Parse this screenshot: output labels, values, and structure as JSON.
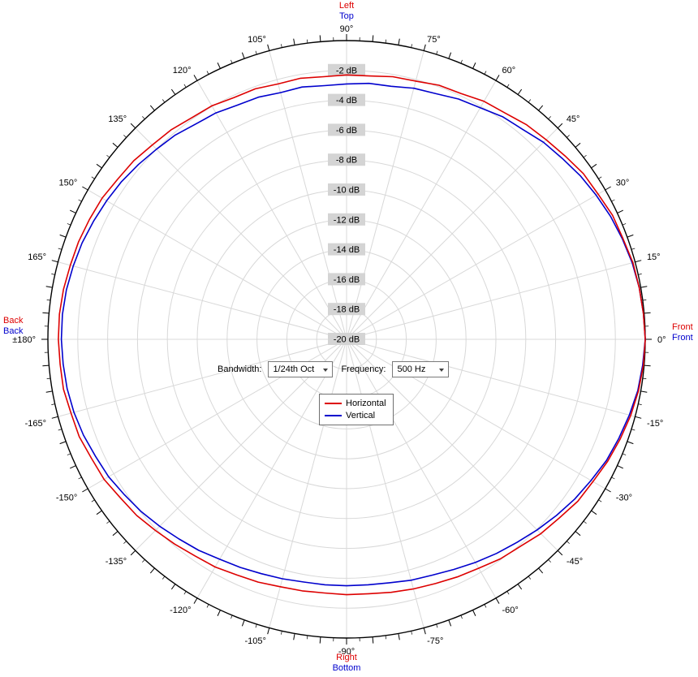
{
  "chart_data": {
    "type": "polar-line",
    "title": "",
    "angle_unit": "deg",
    "tick_minor_deg": 2.5,
    "angles_deg": [
      0,
      5,
      10,
      15,
      20,
      25,
      30,
      35,
      40,
      45,
      50,
      55,
      60,
      65,
      70,
      75,
      80,
      85,
      90,
      95,
      100,
      105,
      110,
      115,
      120,
      125,
      130,
      135,
      140,
      145,
      150,
      155,
      160,
      165,
      170,
      175,
      180,
      185,
      190,
      195,
      200,
      205,
      210,
      215,
      220,
      225,
      230,
      235,
      240,
      245,
      250,
      255,
      260,
      265,
      270,
      275,
      280,
      285,
      290,
      295,
      300,
      305,
      310,
      315,
      320,
      325,
      330,
      335,
      340,
      345,
      350,
      355
    ],
    "series": [
      {
        "name": "Horizontal",
        "color": "#dd0000",
        "values": [
          0.0,
          -0.05,
          -0.1,
          -0.15,
          -0.3,
          -0.35,
          -0.55,
          -0.65,
          -0.9,
          -1.1,
          -1.25,
          -1.5,
          -1.6,
          -1.85,
          -1.9,
          -2.1,
          -2.15,
          -2.3,
          -2.3,
          -2.35,
          -2.25,
          -2.3,
          -2.15,
          -2.15,
          -1.95,
          -1.9,
          -1.7,
          -1.6,
          -1.4,
          -1.3,
          -1.1,
          -1.0,
          -0.9,
          -0.85,
          -0.75,
          -0.7,
          -0.7,
          -0.75,
          -0.75,
          -0.9,
          -0.95,
          -1.15,
          -1.25,
          -1.5,
          -1.65,
          -1.9,
          -2.1,
          -2.3,
          -2.4,
          -2.6,
          -2.7,
          -2.85,
          -2.9,
          -2.95,
          -2.9,
          -2.9,
          -2.8,
          -2.7,
          -2.6,
          -2.45,
          -2.3,
          -2.05,
          -1.9,
          -1.6,
          -1.4,
          -1.1,
          -0.95,
          -0.7,
          -0.5,
          -0.3,
          -0.15,
          -0.05
        ]
      },
      {
        "name": "Vertical",
        "color": "#0000cd",
        "values": [
          0.0,
          -0.05,
          -0.1,
          -0.2,
          -0.35,
          -0.5,
          -0.7,
          -0.9,
          -1.15,
          -1.35,
          -1.65,
          -1.8,
          -2.1,
          -2.25,
          -2.5,
          -2.6,
          -2.8,
          -2.8,
          -2.9,
          -2.95,
          -2.85,
          -2.9,
          -2.75,
          -2.7,
          -2.5,
          -2.4,
          -2.15,
          -2.0,
          -1.8,
          -1.6,
          -1.45,
          -1.3,
          -1.15,
          -1.05,
          -0.95,
          -0.9,
          -0.9,
          -0.95,
          -1.0,
          -1.1,
          -1.25,
          -1.45,
          -1.6,
          -1.85,
          -2.05,
          -2.3,
          -2.55,
          -2.75,
          -3.0,
          -3.15,
          -3.3,
          -3.4,
          -3.5,
          -3.5,
          -3.5,
          -3.5,
          -3.45,
          -3.3,
          -3.2,
          -3.0,
          -2.75,
          -2.5,
          -2.25,
          -1.95,
          -1.65,
          -1.35,
          -1.1,
          -0.8,
          -0.6,
          -0.4,
          -0.2,
          -0.1
        ]
      }
    ],
    "r_axis": {
      "unit": "dB",
      "max": 0,
      "min": -20,
      "ring_step": 2,
      "ring_labels": [
        "-2 dB",
        "-4 dB",
        "-6 dB",
        "-8 dB",
        "-10 dB",
        "-12 dB",
        "-14 dB",
        "-16 dB",
        "-18 dB",
        "-20 dB"
      ]
    },
    "angle_labels": [
      "0°",
      "15°",
      "30°",
      "45°",
      "60°",
      "75°",
      "90°",
      "105°",
      "120°",
      "135°",
      "150°",
      "165°",
      "±180°",
      "-165°",
      "-150°",
      "-135°",
      "-120°",
      "-105°",
      "-90°",
      "-75°",
      "-60°",
      "-45°",
      "-30°",
      "-15°"
    ],
    "grid": true,
    "legend_position": "center"
  },
  "directions": {
    "top": {
      "horizontal": "Left",
      "vertical": "Top"
    },
    "right": {
      "horizontal": "Front",
      "vertical": "Front"
    },
    "left": {
      "horizontal": "Back",
      "vertical": "Back"
    },
    "bottom": {
      "horizontal": "Right",
      "vertical": "Bottom"
    }
  },
  "controls": {
    "bandwidth_label": "Bandwidth:",
    "bandwidth_value": "1/24th Oct",
    "frequency_label": "Frequency:",
    "frequency_value": "500 Hz"
  },
  "legend": {
    "items": [
      {
        "label": "Horizontal",
        "color": "#dd0000"
      },
      {
        "label": "Vertical",
        "color": "#0000cd"
      }
    ]
  },
  "colors": {
    "horizontal": "#dd0000",
    "vertical": "#0000cd",
    "grid": "#d8d8d8",
    "outer_ring": "#000000",
    "tick": "#000000",
    "db_chip_bg": "#d4d4d4",
    "db_chip_text": "#000000",
    "angle_label": "#000000"
  }
}
